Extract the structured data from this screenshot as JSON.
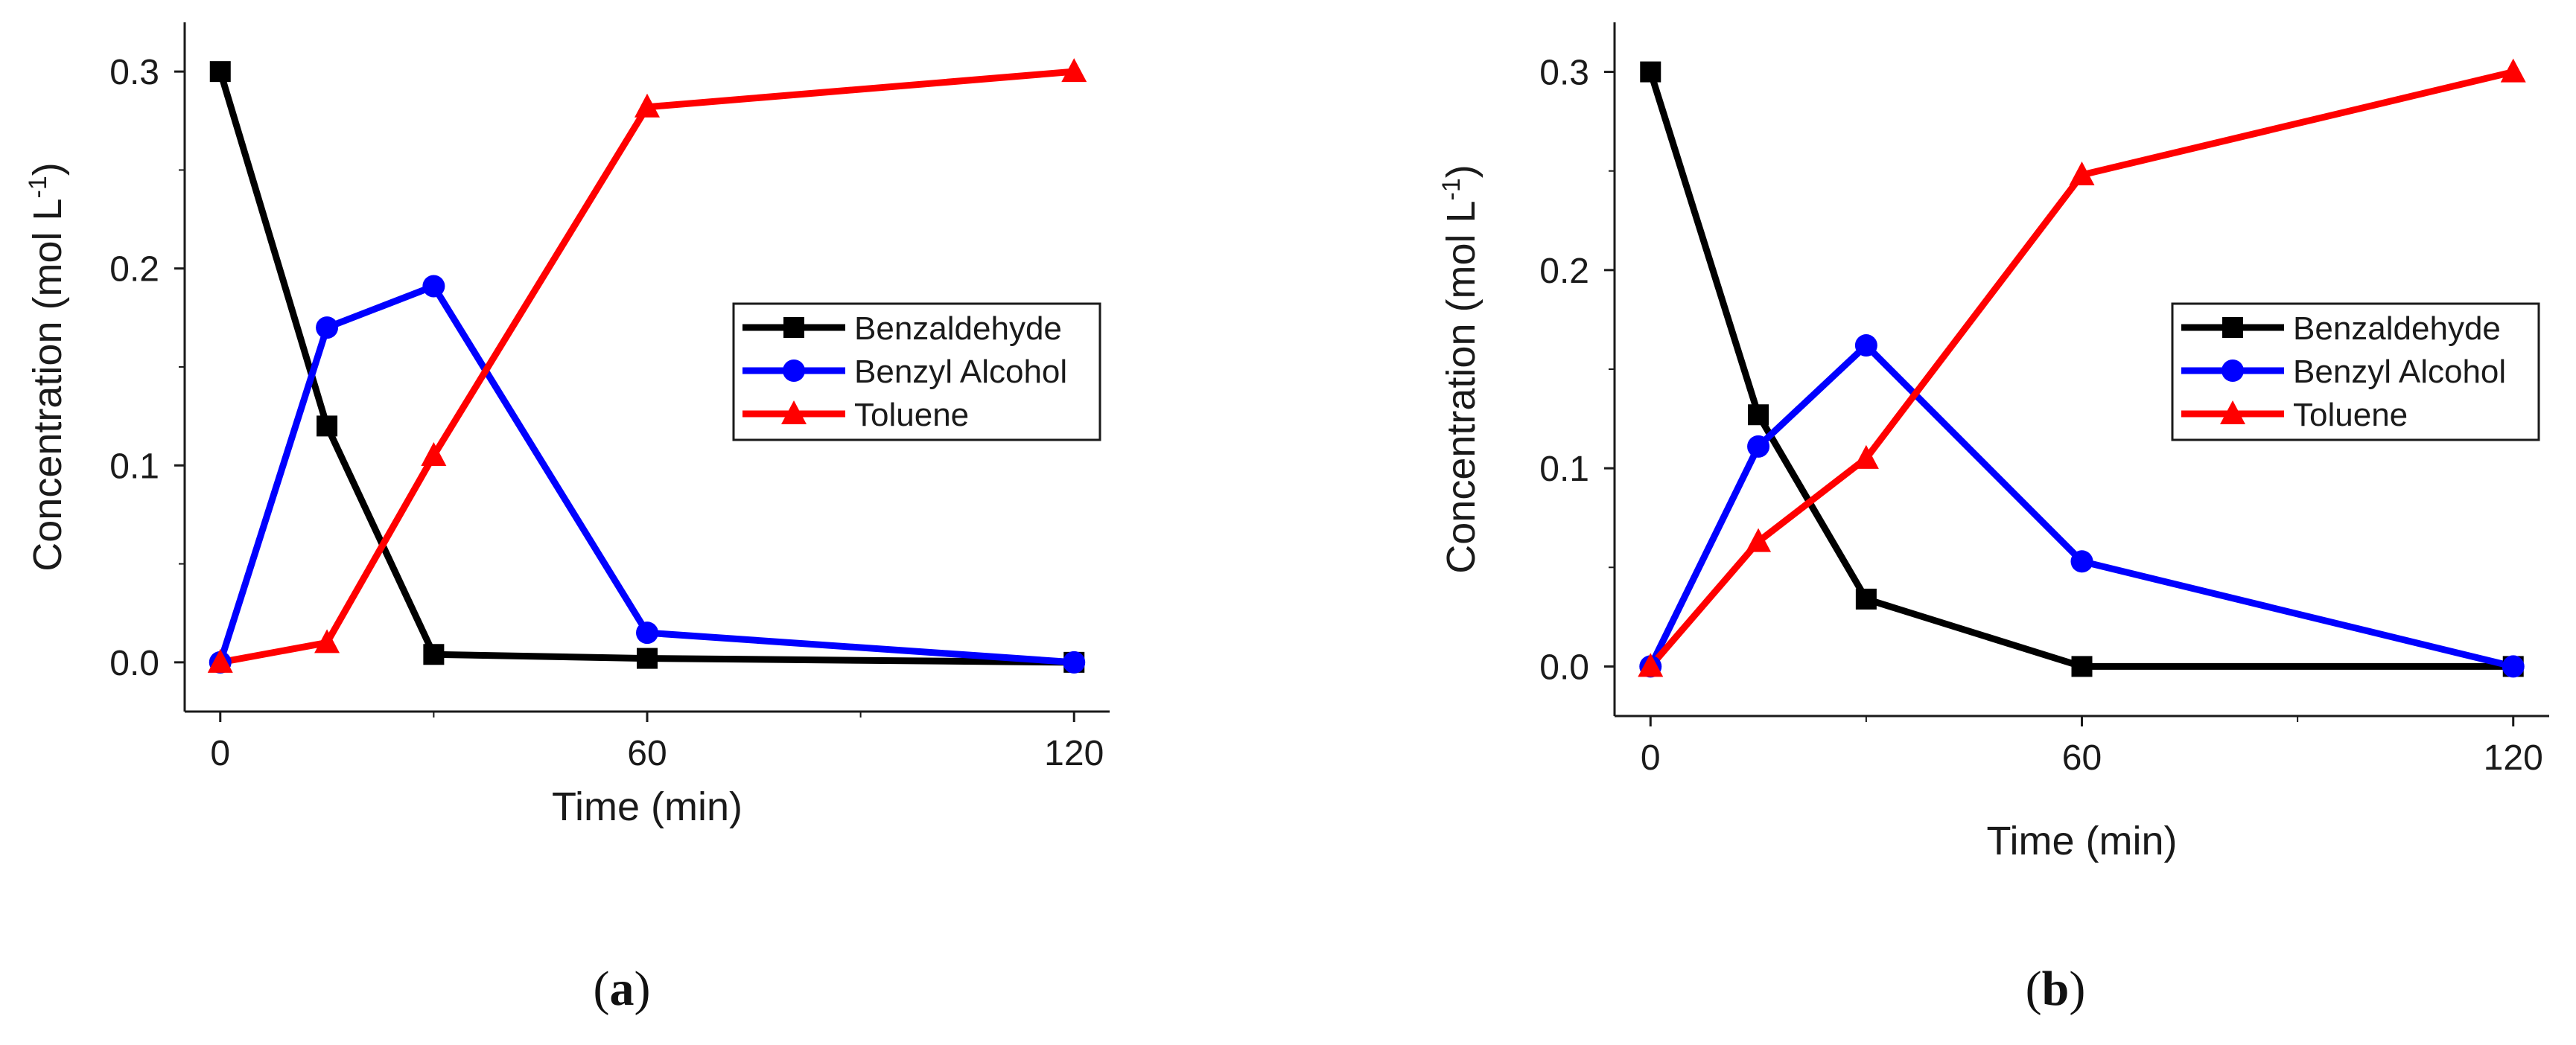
{
  "colors": {
    "Benzaldehyde": "#000000",
    "Benzyl Alcohol": "#0000ff",
    "Toluene": "#ff0000",
    "axis": "#1a1a1a"
  },
  "chart_data": [
    {
      "type": "line",
      "panel_label": "a",
      "xlabel": "Time (min)",
      "ylabel": "Concentration (mol L",
      "ylabel_sup": "-1",
      "ylabel_end": ")",
      "xlim": [
        -5,
        125
      ],
      "ylim": [
        -0.025,
        0.325
      ],
      "xticks": [
        0,
        60,
        120
      ],
      "xtick_labels": [
        "0",
        "60",
        "120"
      ],
      "yticks": [
        0.0,
        0.1,
        0.2,
        0.3
      ],
      "ytick_labels": [
        "0.0",
        "0.1",
        "0.2",
        "0.3"
      ],
      "x": [
        0,
        15,
        30,
        60,
        120
      ],
      "legend": [
        "Benzaldehyde",
        "Benzyl Alcohol",
        "Toluene"
      ],
      "legend_position": "center-right",
      "series": [
        {
          "name": "Benzaldehyde",
          "marker": "square",
          "values": [
            0.3,
            0.12,
            0.004,
            0.002,
            0.0
          ]
        },
        {
          "name": "Benzyl Alcohol",
          "marker": "circle",
          "values": [
            0.0,
            0.17,
            0.191,
            0.015,
            0.0
          ]
        },
        {
          "name": "Toluene",
          "marker": "triangle",
          "values": [
            0.0,
            0.01,
            0.105,
            0.282,
            0.3
          ]
        }
      ]
    },
    {
      "type": "line",
      "panel_label": "b",
      "xlabel": "Time (min)",
      "ylabel": "Concentration (mol L",
      "ylabel_sup": "-1",
      "ylabel_end": ")",
      "xlim": [
        -5,
        125
      ],
      "ylim": [
        -0.025,
        0.325
      ],
      "xticks": [
        0,
        60,
        120
      ],
      "xtick_labels": [
        "0",
        "60",
        "120"
      ],
      "yticks": [
        0.0,
        0.1,
        0.2,
        0.3
      ],
      "ytick_labels": [
        "0.0",
        "0.1",
        "0.2",
        "0.3"
      ],
      "x": [
        0,
        15,
        30,
        60,
        120
      ],
      "legend": [
        "Benzaldehyde",
        "Benzyl Alcohol",
        "Toluene"
      ],
      "legend_position": "center-right",
      "series": [
        {
          "name": "Benzaldehyde",
          "marker": "square",
          "values": [
            0.3,
            0.127,
            0.034,
            0.0,
            0.0
          ]
        },
        {
          "name": "Benzyl Alcohol",
          "marker": "circle",
          "values": [
            0.0,
            0.111,
            0.162,
            0.053,
            0.0
          ]
        },
        {
          "name": "Toluene",
          "marker": "triangle",
          "values": [
            0.0,
            0.063,
            0.105,
            0.248,
            0.3
          ]
        }
      ]
    }
  ]
}
